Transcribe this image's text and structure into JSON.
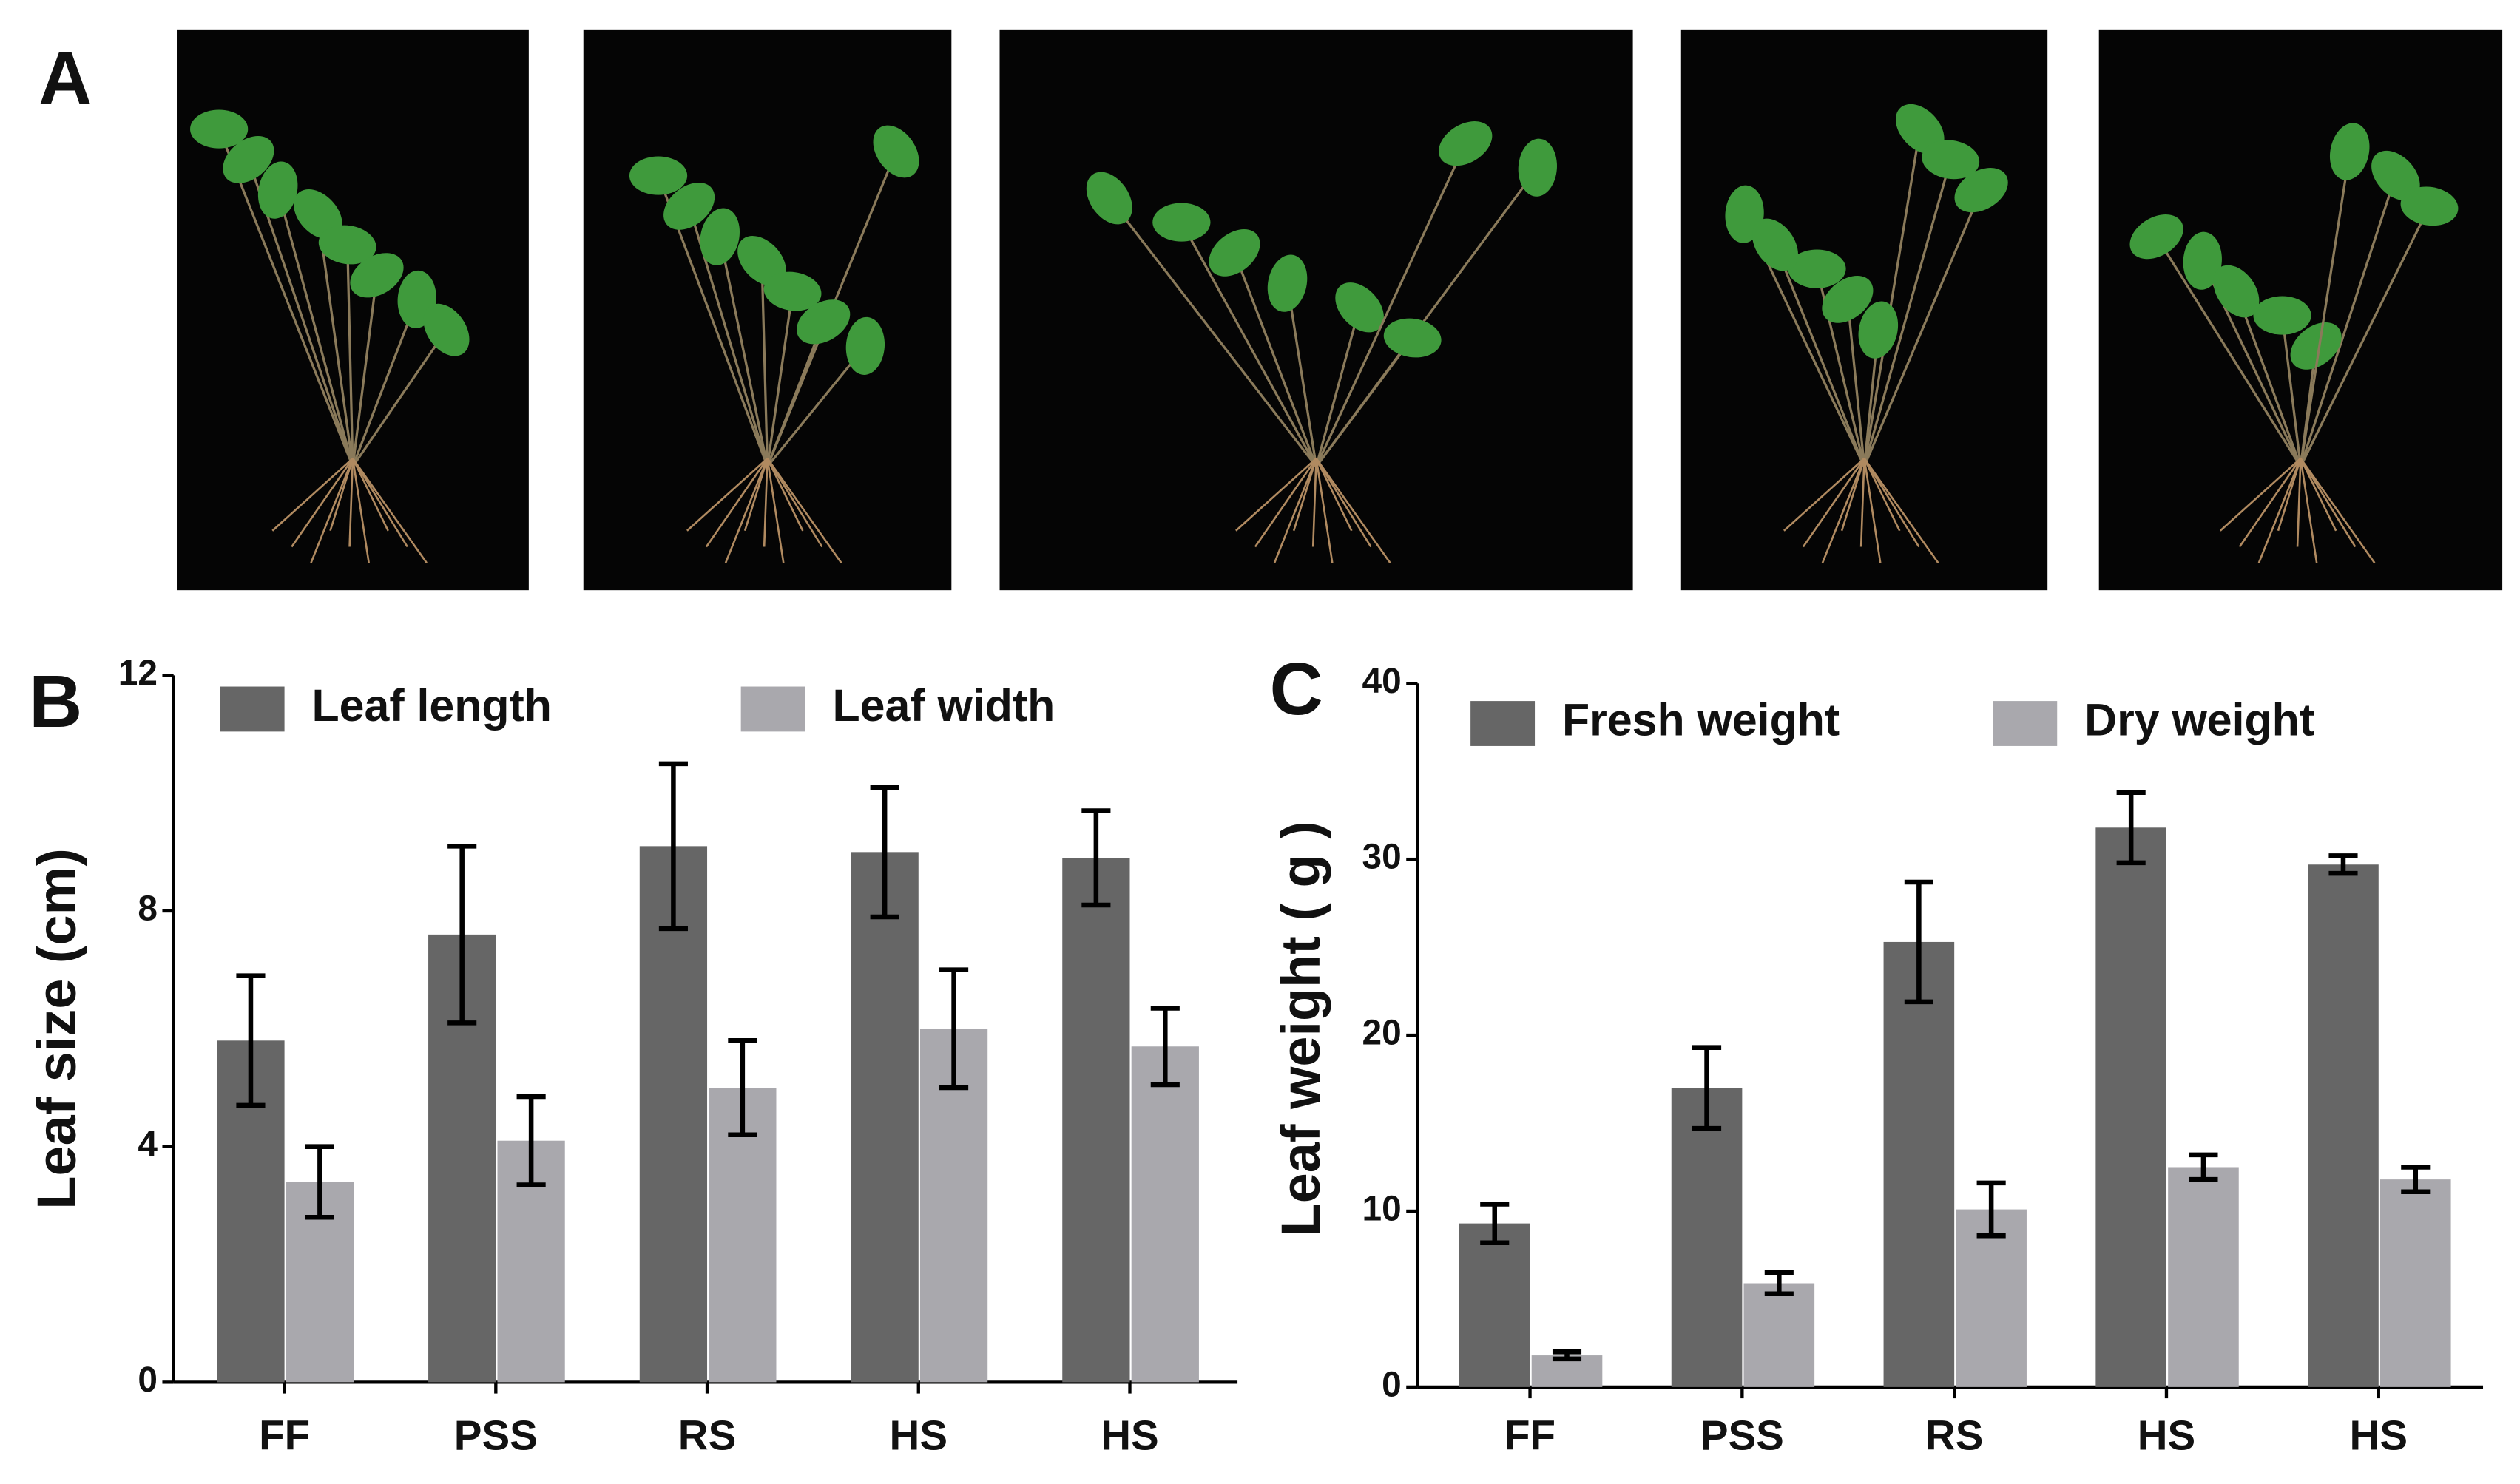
{
  "panel_a": {
    "label": "A"
  },
  "chart_data": [
    {
      "type": "bar",
      "panel_label": "B",
      "y_label": "Leaf size (cm)",
      "categories": [
        "FF",
        "PSS",
        "RS",
        "HS",
        "HS"
      ],
      "series": [
        {
          "name": "Leaf length",
          "color": "#666666",
          "values": [
            5.8,
            7.6,
            9.1,
            9.0,
            8.9
          ],
          "errors": [
            1.1,
            1.5,
            1.4,
            1.1,
            0.8
          ]
        },
        {
          "name": "Leaf width",
          "color": "#a9a8ad",
          "values": [
            3.4,
            4.1,
            5.0,
            6.0,
            5.7
          ],
          "errors": [
            0.6,
            0.75,
            0.8,
            1.0,
            0.65
          ]
        }
      ],
      "ylim": [
        0,
        12
      ],
      "yticks": [
        0,
        4,
        8,
        12
      ]
    },
    {
      "type": "bar",
      "panel_label": "C",
      "y_label": "Leaf weight ( g )",
      "categories": [
        "FF",
        "PSS",
        "RS",
        "HS",
        "HS"
      ],
      "series": [
        {
          "name": "Fresh weight",
          "color": "#666666",
          "values": [
            9.3,
            17.0,
            25.3,
            31.8,
            29.7
          ],
          "errors": [
            1.1,
            2.3,
            3.4,
            2.0,
            0.5
          ]
        },
        {
          "name": "Dry weight",
          "color": "#a9a8ad",
          "values": [
            1.8,
            5.9,
            10.1,
            12.5,
            11.8
          ],
          "errors": [
            0.2,
            0.6,
            1.5,
            0.7,
            0.7
          ]
        }
      ],
      "ylim": [
        0,
        40
      ],
      "yticks": [
        0,
        10,
        20,
        30,
        40
      ]
    }
  ]
}
